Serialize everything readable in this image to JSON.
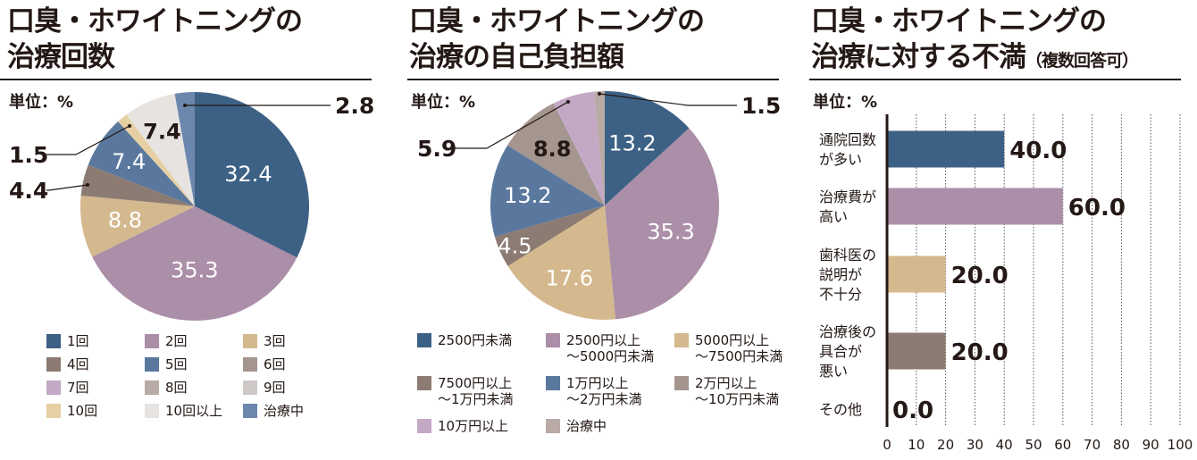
{
  "unit_label": "単位：%",
  "chart_data": [
    {
      "type": "pie",
      "title": "口臭・ホワイトニングの治療回数",
      "title_lines": [
        "口臭・ホワイトニングの",
        "治療回数"
      ],
      "unit": "単位：%",
      "start": "12 o'clock, clockwise",
      "slices": [
        {
          "label": "1回",
          "value": 32.4,
          "color": "#3d6185",
          "shown": "32.4",
          "label_style": "inside-white"
        },
        {
          "label": "2回",
          "value": 35.3,
          "color": "#ab8ea8",
          "shown": "35.3",
          "label_style": "inside-white"
        },
        {
          "label": "3回",
          "value": 8.8,
          "color": "#d4b88e",
          "shown": "8.8",
          "label_style": "inside-white"
        },
        {
          "label": "4回",
          "value": 4.4,
          "color": "#8c7b72",
          "shown": "4.4",
          "label_style": "callout-left"
        },
        {
          "label": "5回",
          "value": 7.4,
          "color": "#5a789e",
          "shown": "7.4",
          "label_style": "inside-white"
        },
        {
          "label": "6回",
          "value": 0,
          "color": "#a4958e",
          "shown": "",
          "label_style": "none"
        },
        {
          "label": "7回",
          "value": 0,
          "color": "#c3a9c4",
          "shown": "",
          "label_style": "none"
        },
        {
          "label": "8回",
          "value": 0,
          "color": "#b9aaa5",
          "shown": "",
          "label_style": "none"
        },
        {
          "label": "9回",
          "value": 0,
          "color": "#cdc8c6",
          "shown": "",
          "label_style": "none"
        },
        {
          "label": "10回",
          "value": 1.5,
          "color": "#e6cfa3",
          "shown": "1.5",
          "label_style": "callout-left"
        },
        {
          "label": "10回以上",
          "value": 7.4,
          "color": "#e7e3e0",
          "shown": "7.4",
          "label_style": "inside-dark"
        },
        {
          "label": "治療中",
          "value": 2.8,
          "color": "#6c87ad",
          "shown": "2.8",
          "label_style": "callout-right"
        }
      ]
    },
    {
      "type": "pie",
      "title": "口臭・ホワイトニングの治療の自己負担額",
      "title_lines": [
        "口臭・ホワイトニングの",
        "治療の自己負担額"
      ],
      "unit": "単位：%",
      "start": "12 o'clock, clockwise",
      "slices": [
        {
          "label": "2500円未満",
          "value": 13.2,
          "color": "#3d6185",
          "shown": "13.2",
          "label_style": "inside-white"
        },
        {
          "label": "2500円以上\n～5000円未満",
          "value": 35.3,
          "color": "#ab8ea8",
          "shown": "35.3",
          "label_style": "inside-white"
        },
        {
          "label": "5000円以上\n～7500円未満",
          "value": 17.6,
          "color": "#d4b88e",
          "shown": "17.6",
          "label_style": "inside-white"
        },
        {
          "label": "7500円以上\n～1万円未満",
          "value": 4.5,
          "color": "#8c7b72",
          "shown": "4.5",
          "label_style": "inside-white"
        },
        {
          "label": "1万円以上\n～2万円未満",
          "value": 13.2,
          "color": "#5a789e",
          "shown": "13.2",
          "label_style": "inside-white"
        },
        {
          "label": "2万円以上\n～10万円未満",
          "value": 8.8,
          "color": "#a4958e",
          "shown": "8.8",
          "label_style": "inside-dark"
        },
        {
          "label": "10万円以上",
          "value": 5.9,
          "color": "#c3a9c4",
          "shown": "5.9",
          "label_style": "callout-left"
        },
        {
          "label": "治療中",
          "value": 1.5,
          "color": "#b9aaa5",
          "shown": "1.5",
          "label_style": "callout-right"
        }
      ]
    },
    {
      "type": "bar",
      "orientation": "horizontal",
      "title": "口臭・ホワイトニングの治療に対する不満（複数回答可）",
      "title_lines": [
        "口臭・ホワイトニングの",
        "治療に対する不満"
      ],
      "title_suffix": "（複数回答可）",
      "unit": "単位：%",
      "categories": [
        "通院回数\nが多い",
        "治療費が\n高い",
        "歯科医の\n説明が\n不十分",
        "治療後の\n具合が\n悪い",
        "その他"
      ],
      "values": [
        40.0,
        60.0,
        20.0,
        20.0,
        0.0
      ],
      "value_labels": [
        "40.0",
        "60.0",
        "20.0",
        "20.0",
        "0.0"
      ],
      "colors": [
        "#3d6185",
        "#ab8ea8",
        "#d4b88e",
        "#8c7b72",
        "#8c7b72"
      ],
      "xlim": [
        0,
        100
      ],
      "xticks": [
        0,
        10,
        20,
        30,
        40,
        50,
        60,
        70,
        80,
        90,
        100
      ],
      "grid": "vertical dotted",
      "xlabel": "",
      "ylabel": ""
    }
  ]
}
